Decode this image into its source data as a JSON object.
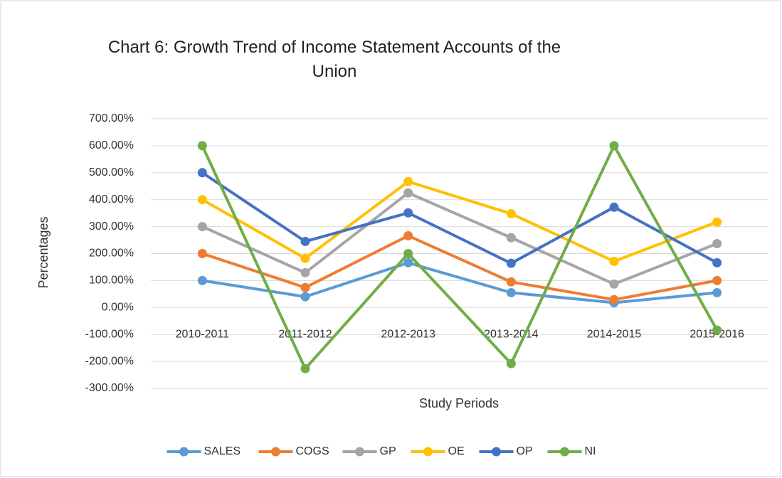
{
  "chart_data": {
    "type": "line",
    "title": "Chart 6: Growth Trend of Income Statement Accounts of the Union",
    "x_label": "Study Periods",
    "y_label": "Percentages",
    "categories": [
      "2010-2011",
      "2011-2012",
      "2012-2013",
      "2013-2014",
      "2014-2015",
      "2015-2016"
    ],
    "series": [
      {
        "name": "SALES",
        "color": "#5b9bd5",
        "values": [
          100,
          40,
          166,
          55,
          18,
          55
        ]
      },
      {
        "name": "COGS",
        "color": "#ed7d31",
        "values": [
          200,
          74,
          266,
          95,
          29,
          100
        ]
      },
      {
        "name": "GP",
        "color": "#a5a5a5",
        "values": [
          300,
          129,
          425,
          259,
          87,
          237
        ]
      },
      {
        "name": "OE",
        "color": "#ffc000",
        "values": [
          400,
          182,
          467,
          348,
          171,
          317
        ]
      },
      {
        "name": "OP",
        "color": "#4472c4",
        "values": [
          500,
          245,
          351,
          164,
          372,
          166
        ]
      },
      {
        "name": "NI",
        "color": "#70ad47",
        "values": [
          600,
          -227,
          200,
          -208,
          600,
          -84
        ]
      }
    ],
    "ylim": [
      -300,
      700
    ],
    "yticks": [
      {
        "value": -300,
        "label": "-300.00%"
      },
      {
        "value": -200,
        "label": "-200.00%"
      },
      {
        "value": -100,
        "label": "-100.00%"
      },
      {
        "value": 0,
        "label": "0.00%"
      },
      {
        "value": 100,
        "label": "100.00%"
      },
      {
        "value": 200,
        "label": "200.00%"
      },
      {
        "value": 300,
        "label": "300.00%"
      },
      {
        "value": 400,
        "label": "400.00%"
      },
      {
        "value": 500,
        "label": "500.00%"
      },
      {
        "value": 600,
        "label": "600.00%"
      },
      {
        "value": 700,
        "label": "700.00%"
      }
    ],
    "grid": true,
    "legend": "bottom"
  }
}
